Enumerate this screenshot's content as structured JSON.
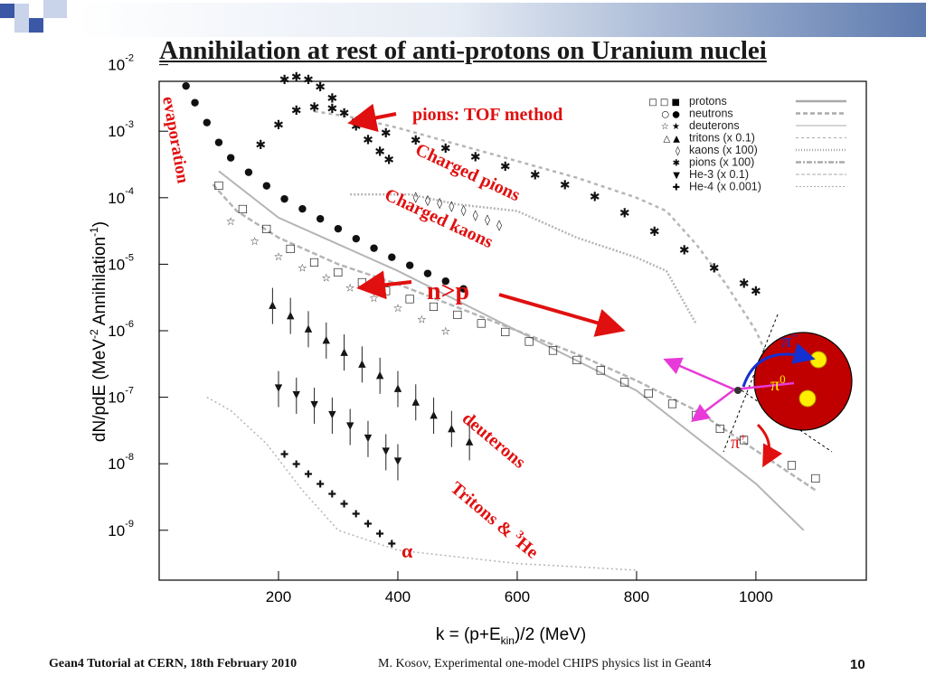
{
  "slide": {
    "title": "Annihilation at rest of anti-protons on Uranium nuclei",
    "footer_left": "Gean4 Tutorial at CERN, 18th February 2010",
    "footer_mid": "M. Kosov,  Experimental one-model CHIPS physics list in Geant4",
    "page_number": "10"
  },
  "colors": {
    "accent": "#e01010",
    "nucleus": "#c00000",
    "pion_arrow": "#e83ad8",
    "logo_blue": "#3b58a6"
  },
  "chart_data": {
    "type": "scatter",
    "xlabel": "k = (p+E",
    "xlabel_sub": "kin",
    "xlabel_end": ")/2 (MeV)",
    "ylabel": "dN/pdE (MeV",
    "ylabel_sup": "-2",
    "ylabel_end": " Annihilation",
    "ylabel_sup2": "-1",
    "ylabel_close": ")",
    "xlim": [
      0,
      1185
    ],
    "ylim_log10": [
      -9.75,
      -2.25
    ],
    "x_ticks": [
      200,
      400,
      600,
      800,
      1000
    ],
    "y_ticks": [
      {
        "base": "10",
        "exp": "-2",
        "value": -2
      },
      {
        "base": "10",
        "exp": "-3",
        "value": -3
      },
      {
        "base": "10",
        "exp": "-4",
        "value": -4
      },
      {
        "base": "10",
        "exp": "-5",
        "value": -5
      },
      {
        "base": "10",
        "exp": "-6",
        "value": -6
      },
      {
        "base": "10",
        "exp": "-7",
        "value": -7
      },
      {
        "base": "10",
        "exp": "-8",
        "value": -8
      },
      {
        "base": "10",
        "exp": "-9",
        "value": -9
      }
    ],
    "legend": [
      {
        "symbols": "□ □ ■",
        "label": "protons"
      },
      {
        "symbols": "○ ●",
        "label": "neutrons"
      },
      {
        "symbols": "☆ ★",
        "label": "deuterons"
      },
      {
        "symbols": "△ ▲",
        "label": "tritons (x 0.1)"
      },
      {
        "symbols": "◊",
        "label": "kaons (x 100)"
      },
      {
        "symbols": "✱",
        "label": "pions (x 100)"
      },
      {
        "symbols": "▼",
        "label": "He-3 (x 0.1)"
      },
      {
        "symbols": "✚",
        "label": "He-4 (x 0.001)"
      }
    ],
    "annotations": {
      "pions_tof": "pions: TOF method",
      "charged_pions": "Charged pions",
      "charged_kaons": "Charged kaons",
      "n_gt_p": "n>p",
      "evaporation": "evaporation",
      "deuterons": "deuterons",
      "tritons_he3": "Tritons & ",
      "tritons_he3_sup": "3",
      "tritons_he3_end": "He",
      "alpha": "α",
      "pi_minus": "π",
      "pi_minus_sup": "–",
      "pi_zero": "π",
      "pi_zero_sup": "0",
      "pi_plus": "π",
      "pi_plus_sup": "+"
    },
    "series": [
      {
        "name": "pions (x 100)",
        "marker": "asterisk",
        "x": [
          170,
          200,
          230,
          260,
          290,
          330,
          380,
          430,
          480,
          530,
          580,
          630,
          680,
          730,
          780,
          830,
          880,
          930,
          980,
          1000
        ],
        "y": [
          -3.2,
          -2.9,
          -2.68,
          -2.63,
          -2.65,
          -2.85,
          -3.02,
          -3.13,
          -3.25,
          -3.38,
          -3.52,
          -3.65,
          -3.8,
          -3.98,
          -4.22,
          -4.5,
          -4.78,
          -5.05,
          -5.28,
          -5.4
        ]
      },
      {
        "name": "pions (x 100) TOF",
        "marker": "asterisk",
        "x": [
          210,
          230,
          250,
          270,
          290,
          310,
          330,
          350,
          370,
          385
        ],
        "y": [
          -2.22,
          -2.18,
          -2.22,
          -2.33,
          -2.5,
          -2.72,
          -2.92,
          -3.12,
          -3.3,
          -3.42
        ]
      },
      {
        "name": "kaons (x 100)",
        "marker": "diamond",
        "x": [
          430,
          450,
          470,
          490,
          510,
          530,
          550,
          570
        ],
        "y": [
          -3.98,
          -4.03,
          -4.07,
          -4.12,
          -4.18,
          -4.25,
          -4.32,
          -4.4
        ]
      },
      {
        "name": "neutrons",
        "marker": "circle",
        "x": [
          30,
          45,
          60,
          80,
          100,
          120,
          150,
          180,
          210,
          240,
          270,
          300,
          330,
          360,
          390,
          420,
          450,
          480,
          510
        ],
        "y": [
          -2.1,
          -2.3,
          -2.55,
          -2.85,
          -3.15,
          -3.38,
          -3.6,
          -3.8,
          -4.0,
          -4.15,
          -4.3,
          -4.45,
          -4.6,
          -4.74,
          -4.88,
          -5.0,
          -5.12,
          -5.24,
          -5.35
        ]
      },
      {
        "name": "protons",
        "marker": "square",
        "x": [
          100,
          140,
          180,
          220,
          260,
          300,
          340,
          380,
          420,
          460,
          500,
          540,
          580,
          620,
          660,
          700,
          740,
          780,
          820,
          860,
          900,
          940,
          980,
          1020,
          1060,
          1100
        ],
        "y": [
          -3.8,
          -4.15,
          -4.45,
          -4.75,
          -4.95,
          -5.1,
          -5.25,
          -5.38,
          -5.5,
          -5.62,
          -5.74,
          -5.87,
          -6.0,
          -6.14,
          -6.28,
          -6.42,
          -6.58,
          -6.75,
          -6.92,
          -7.08,
          -7.25,
          -7.45,
          -7.62,
          -7.8,
          -8.0,
          -8.2
        ]
      },
      {
        "name": "deuterons",
        "marker": "star",
        "x": [
          120,
          160,
          200,
          240,
          280,
          320,
          360,
          400,
          440,
          480
        ],
        "y": [
          -4.35,
          -4.65,
          -4.88,
          -5.05,
          -5.2,
          -5.35,
          -5.5,
          -5.65,
          -5.82,
          -6.0
        ]
      },
      {
        "name": "tritons (x 0.1)",
        "marker": "triangle-up",
        "x": [
          190,
          220,
          250,
          280,
          310,
          340,
          370,
          400,
          430,
          460,
          490,
          520
        ],
        "y": [
          -5.6,
          -5.75,
          -5.95,
          -6.12,
          -6.3,
          -6.48,
          -6.65,
          -6.85,
          -7.05,
          -7.25,
          -7.45,
          -7.65
        ]
      },
      {
        "name": "He-3 (x 0.1)",
        "marker": "triangle-down",
        "x": [
          200,
          230,
          260,
          290,
          320,
          350,
          380,
          400
        ],
        "y": [
          -6.85,
          -6.95,
          -7.1,
          -7.25,
          -7.42,
          -7.6,
          -7.8,
          -7.95
        ]
      },
      {
        "name": "He-4 (x 0.001)",
        "marker": "cross",
        "x": [
          210,
          230,
          250,
          270,
          290,
          310,
          330,
          350,
          370,
          390
        ],
        "y": [
          -7.85,
          -8.0,
          -8.15,
          -8.3,
          -8.45,
          -8.6,
          -8.75,
          -8.9,
          -9.05,
          -9.2
        ]
      }
    ]
  }
}
